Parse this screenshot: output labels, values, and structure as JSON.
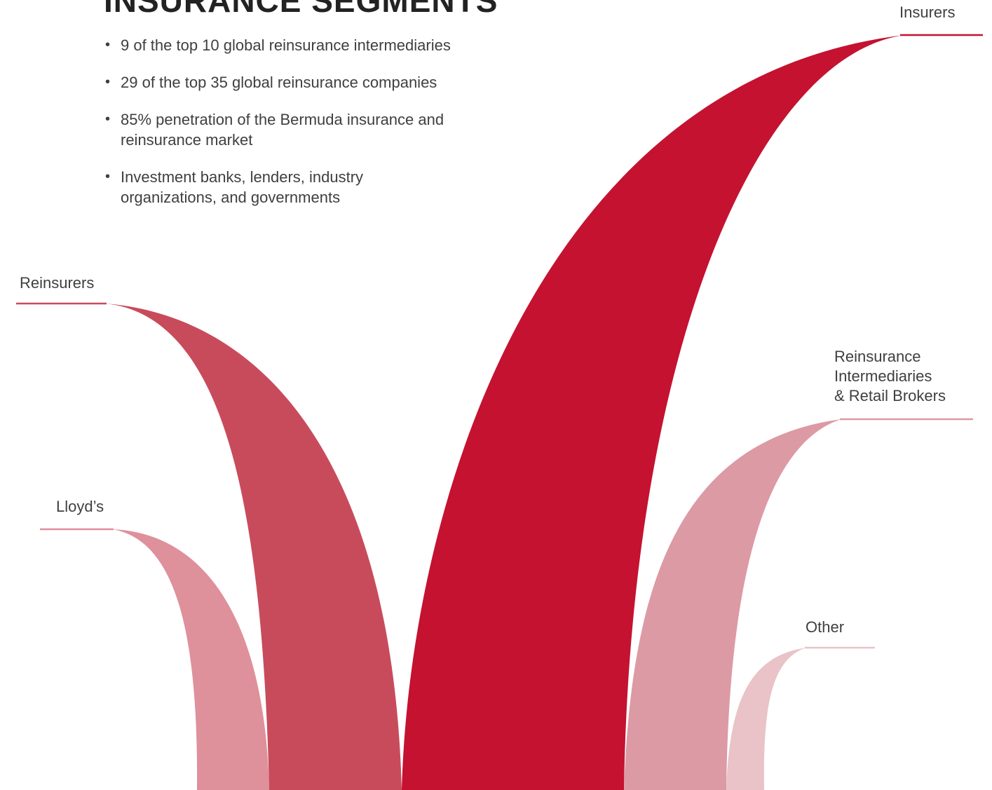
{
  "heading": "INSURANCE SEGMENTS",
  "bullets": [
    "9 of the top 10 global reinsurance intermediaries",
    "29 of the top 35 global reinsurance companies",
    "85% penetration of the Bermuda insurance and reinsurance market",
    "Investment banks, lenders, industry organizations, and governments"
  ],
  "segments": [
    {
      "name": "Insurers",
      "color": "#c41230"
    },
    {
      "name": "Reinsurers",
      "color": "#c84b5c"
    },
    {
      "name": "Lloyd’s",
      "color": "#de909b"
    },
    {
      "name_lines": [
        "Reinsurance",
        "Intermediaries",
        "& Retail Brokers"
      ],
      "color": "#dc9aa4"
    },
    {
      "name": "Other",
      "color": "#e9c3c8"
    }
  ]
}
